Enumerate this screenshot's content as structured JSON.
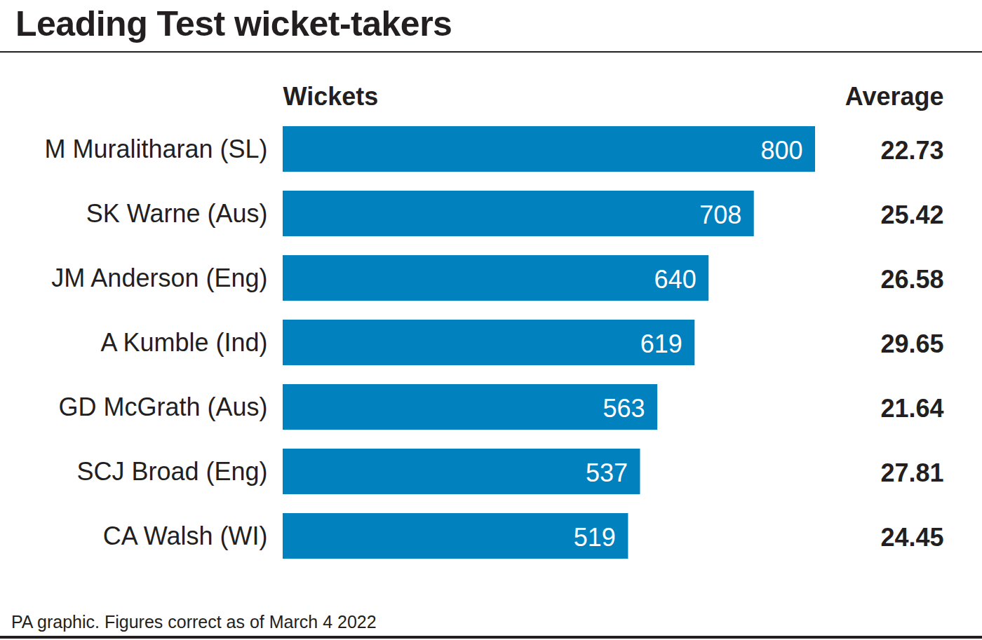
{
  "chart_data": {
    "type": "bar",
    "orientation": "horizontal",
    "title": "Leading Test wicket-takers",
    "xlabel": "Wickets",
    "categories": [
      "M Muralitharan (SL)",
      "SK Warne (Aus)",
      "JM Anderson (Eng)",
      "A Kumble (Ind)",
      "GD McGrath (Aus)",
      "SCJ Broad (Eng)",
      "CA Walsh (WI)"
    ],
    "values": [
      800,
      708,
      640,
      619,
      563,
      537,
      519
    ],
    "color": "#0281bf",
    "xlim": [
      0,
      800
    ],
    "data_labels": true,
    "tick_labels": "y",
    "averages": {
      "label": "Average",
      "values": [
        22.73,
        25.42,
        26.58,
        29.65,
        21.64,
        27.81,
        24.45
      ]
    },
    "caption": "PA graphic. Figures correct as of March 4 2022"
  }
}
